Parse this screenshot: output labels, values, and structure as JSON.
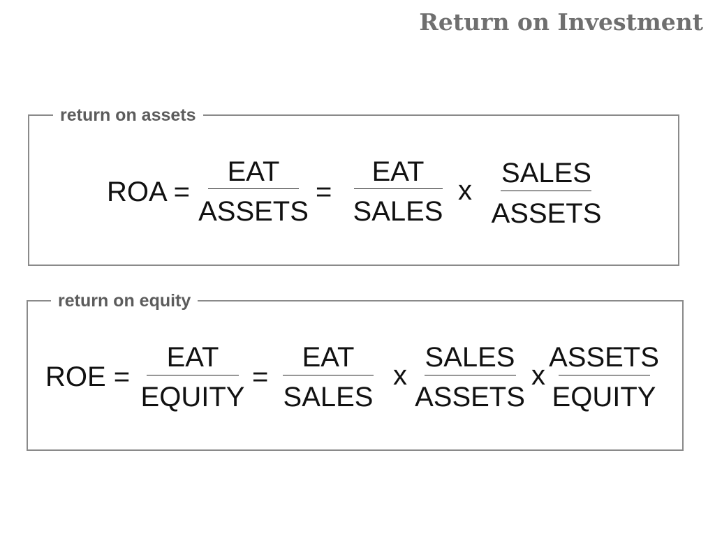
{
  "title": "Return on Investment",
  "roa": {
    "label": "return on assets",
    "lhs": "ROA =",
    "f1_num": "EAT",
    "f1_den": "ASSETS",
    "eq": "=",
    "f2_num": "EAT",
    "f2_den": "SALES",
    "times": "x",
    "f3_num": "SALES",
    "f3_den": "ASSETS"
  },
  "roe": {
    "label": "return on equity",
    "lhs": "ROE =",
    "f1_num": "EAT",
    "f1_den": "EQUITY",
    "eq": "=",
    "f2_num": "EAT",
    "f2_den": "SALES",
    "times1": "x",
    "f3_num": "SALES",
    "f3_den": "ASSETS",
    "times2": "x",
    "f4_num": "ASSETS",
    "f4_den": "EQUITY"
  }
}
